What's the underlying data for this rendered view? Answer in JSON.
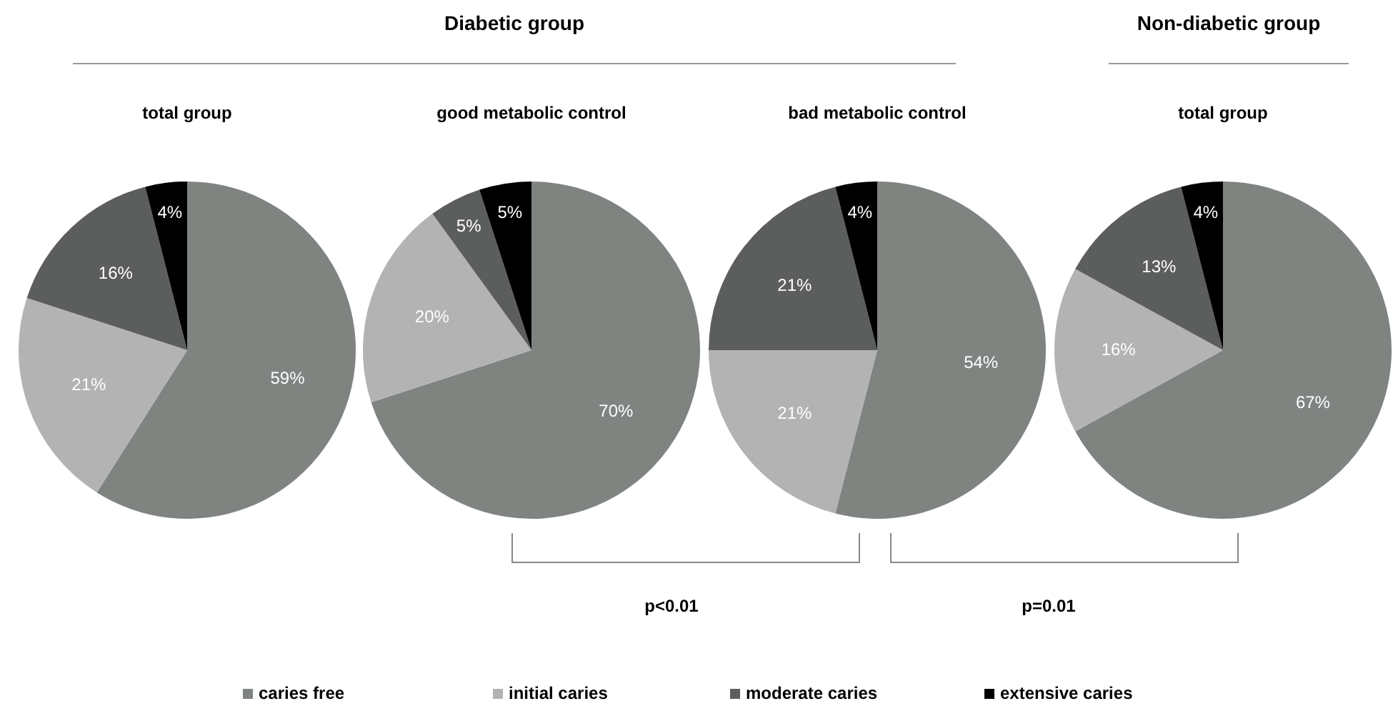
{
  "chart_data": [
    {
      "type": "pie",
      "title": "total group",
      "annotations": [
        "Diabetic group"
      ],
      "categories": [
        "caries free",
        "initial caries",
        "moderate caries",
        "extensive caries"
      ],
      "values": [
        59,
        21,
        16,
        4
      ],
      "value_labels": [
        "59%",
        "21%",
        "16%",
        "4%"
      ],
      "colors": [
        "#7f8481",
        "#b3b3b3",
        "#5b5e5d",
        "#000000"
      ],
      "legend": "bottom"
    },
    {
      "type": "pie",
      "title": "good metabolic control",
      "annotations": [
        "p<0.01"
      ],
      "categories": [
        null,
        null,
        null,
        null
      ],
      "values": [
        70,
        20,
        5,
        5
      ],
      "value_labels": [
        "70%",
        "20%",
        "5%",
        "5%"
      ],
      "colors": [
        "#7f8481",
        "#b3b3b3",
        "#5b5e5d",
        "#000000"
      ]
    },
    {
      "type": "pie",
      "title": "bad metabolic control",
      "annotations": [
        "p=0.01"
      ],
      "categories": [
        null,
        null,
        null,
        null
      ],
      "values": [
        54,
        21,
        21,
        4
      ],
      "value_labels": [
        "54%",
        "21%",
        "21%",
        "4%"
      ],
      "colors": [
        "#7f8481",
        "#b3b3b3",
        "#5b5e5d",
        "#000000"
      ]
    },
    {
      "type": "pie",
      "title": "total group",
      "annotations": [
        "Non-diabetic group"
      ],
      "categories": [
        null,
        null,
        null,
        null
      ],
      "values": [
        67,
        16,
        13,
        4
      ],
      "value_labels": [
        "67%",
        "16%",
        "13%",
        "4%"
      ],
      "colors": [
        "#7f8481",
        "#b3b3b3",
        "#5b5e5d",
        "#000000"
      ]
    }
  ]
}
